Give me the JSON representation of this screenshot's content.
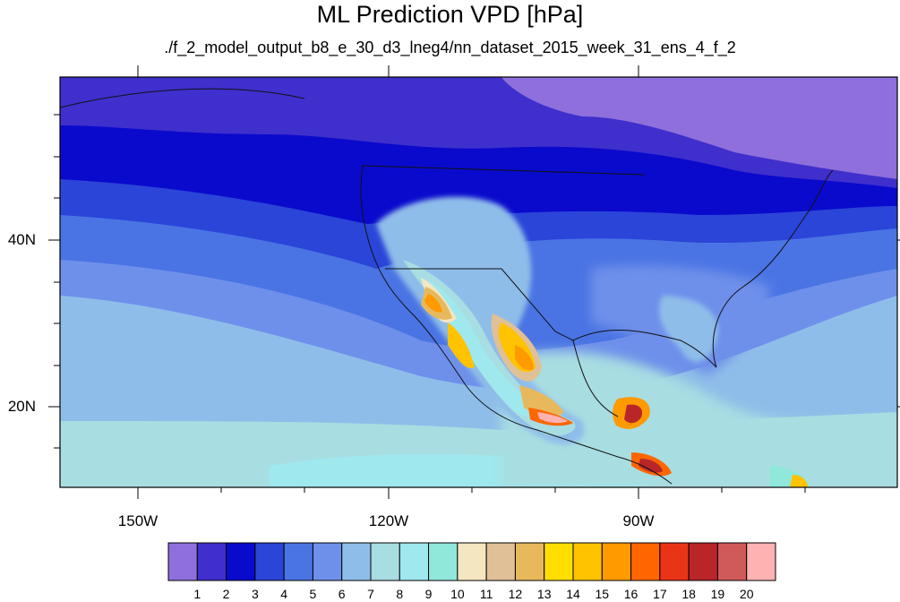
{
  "title": "ML Prediction VPD [hPa]",
  "subtitle": "./f_2_model_output_b8_e_30_d3_lneg4/nn_dataset_2015_week_31_ens_4_f_2",
  "lat_labels": [
    "40N",
    "20N"
  ],
  "lon_labels": [
    "150W",
    "120W",
    "90W"
  ],
  "colorbar": {
    "labels": [
      "1",
      "2",
      "3",
      "4",
      "5",
      "6",
      "7",
      "8",
      "9",
      "10",
      "11",
      "12",
      "13",
      "14",
      "15",
      "16",
      "17",
      "18",
      "19",
      "20"
    ],
    "colors": [
      "#8f6fdb",
      "#3f2fcc",
      "#0a0acc",
      "#2a45d8",
      "#4a74e4",
      "#6e90ea",
      "#8fbde9",
      "#a8dde2",
      "#9fe8ee",
      "#8fe8da",
      "#f4e6c0",
      "#e0c096",
      "#e8b95c",
      "#ffde00",
      "#ffc300",
      "#ff9a00",
      "#ff6600",
      "#ea3418",
      "#b8262a",
      "#d05a5a",
      "#ffb2b2"
    ]
  },
  "colors": {
    "land_border": "#111111"
  }
}
